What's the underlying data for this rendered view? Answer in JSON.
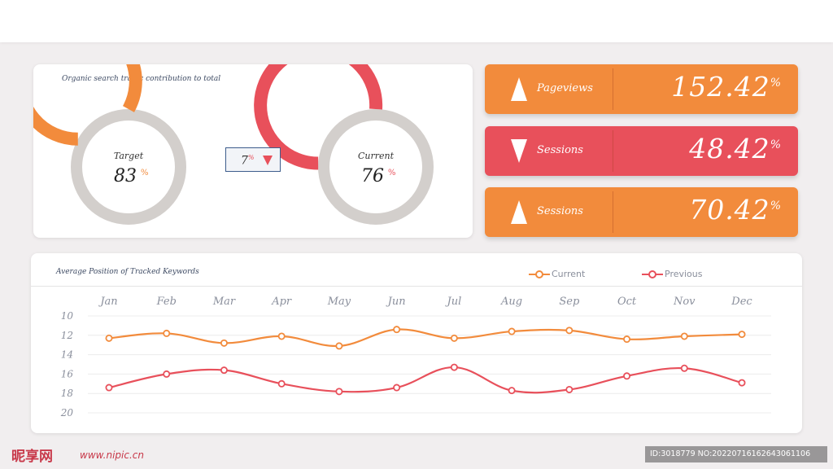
{
  "colors": {
    "orange": "#f28b3c",
    "red": "#e8505b",
    "track": "#d3cfcc",
    "title_text": "#3d4a63",
    "axis_text": "#8a8f9c"
  },
  "donut_panel": {
    "title": "Organic search traffic contribution to total",
    "target": {
      "label": "Target",
      "value": "83",
      "unit": "%",
      "fraction": 0.83
    },
    "current": {
      "label": "Current",
      "value": "76",
      "unit": "%",
      "fraction": 0.76
    },
    "comparison": {
      "value": "7",
      "unit": "%",
      "direction": "down",
      "arrow_icon": "triangle-down-icon"
    }
  },
  "stat_cards": [
    {
      "label": "Pageviews",
      "value": "152.42",
      "unit": "%",
      "direction": "up",
      "color": "orange"
    },
    {
      "label": "Sessions",
      "value": "48.42",
      "unit": "%",
      "direction": "down",
      "color": "red"
    },
    {
      "label": "Sessions",
      "value": "70.42",
      "unit": "%",
      "direction": "up",
      "color": "orange"
    }
  ],
  "chart_data": {
    "type": "line",
    "title": "Average Position of Tracked Keywords",
    "categories": [
      "Jan",
      "Feb",
      "Mar",
      "Apr",
      "May",
      "Jun",
      "Jul",
      "Aug",
      "Sep",
      "Oct",
      "Nov",
      "Dec"
    ],
    "series": [
      {
        "name": "Current",
        "color": "#f28b3c",
        "values": [
          12.3,
          11.8,
          12.8,
          12.1,
          13.1,
          11.4,
          12.3,
          11.6,
          11.5,
          12.4,
          12.1,
          11.9
        ]
      },
      {
        "name": "Previous",
        "color": "#e8505b",
        "values": [
          17.4,
          16.0,
          15.6,
          17.0,
          17.8,
          17.4,
          15.3,
          17.7,
          17.6,
          16.2,
          15.4,
          16.9
        ]
      }
    ],
    "y_ticks": [
      "10",
      "12",
      "14",
      "16",
      "18",
      "20"
    ],
    "ylim": [
      10,
      20
    ],
    "y_reversed": true,
    "grid": true,
    "legend_position": "top-right",
    "xlabel": "",
    "ylabel": ""
  },
  "footer": {
    "brand": "昵享网",
    "url": "www.nipic.cn",
    "id_text": "ID:3018779 NO:20220716162643061106"
  }
}
